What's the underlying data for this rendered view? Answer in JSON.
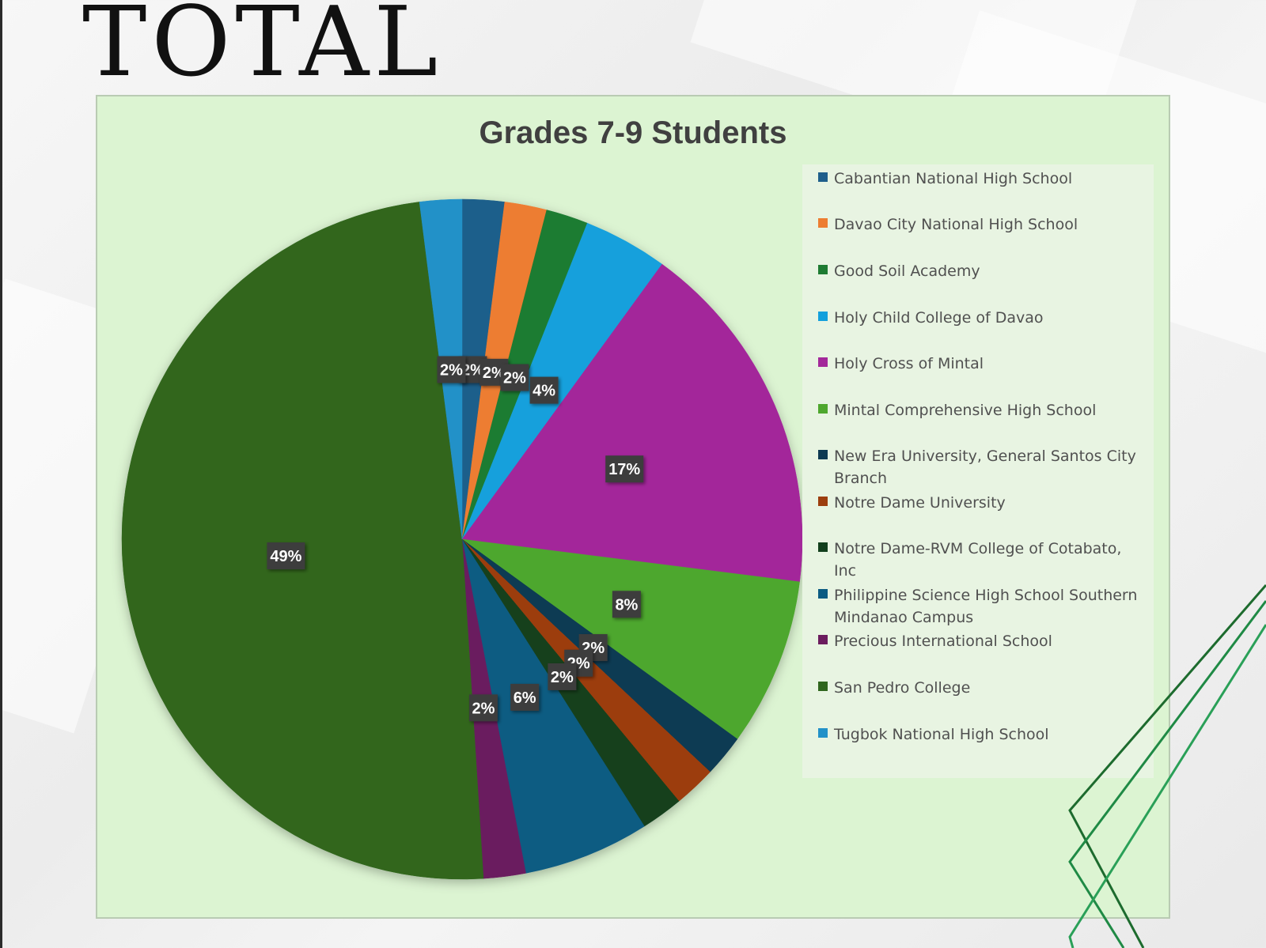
{
  "slide": {
    "title": "TOTAL"
  },
  "chart_data": {
    "type": "pie",
    "title": "Grades 7-9 Students",
    "legend_position": "right",
    "start_direction": "clockwise-from-top",
    "series": [
      {
        "name": "Cabantian National High School",
        "value": 2,
        "label": "2%",
        "color": "#1f5f8b"
      },
      {
        "name": "Davao City National High School",
        "value": 2,
        "label": "2%",
        "color": "#ed7d31"
      },
      {
        "name": "Good Soil Academy",
        "value": 2,
        "label": "2%",
        "color": "#1e7b32"
      },
      {
        "name": "Holy Child College of Davao",
        "value": 4,
        "label": "4%",
        "color": "#13a0dc"
      },
      {
        "name": "Holy Cross of Mintal",
        "value": 17,
        "label": "17%",
        "color": "#a3289a"
      },
      {
        "name": "Mintal Comprehensive High School",
        "value": 8,
        "label": "8%",
        "color": "#4ea72e"
      },
      {
        "name": "New Era University, General Santos City Branch",
        "value": 2,
        "label": "2%",
        "color": "#0e3a52"
      },
      {
        "name": "Notre Dame University",
        "value": 2,
        "label": "2%",
        "color": "#9c3e0e"
      },
      {
        "name": "Notre Dame-RVM College of Cotabato, Inc",
        "value": 2,
        "label": "2%",
        "color": "#123f1c"
      },
      {
        "name": "Philippine Science High School Southern Mindanao Campus",
        "value": 6,
        "label": "6%",
        "color": "#0b5b82"
      },
      {
        "name": "Precious International School",
        "value": 2,
        "label": "2%",
        "color": "#6b1c5e"
      },
      {
        "name": "San Pedro College",
        "value": 49,
        "label": "49%",
        "color": "#30661e"
      },
      {
        "name": "Tugbok National High School",
        "value": 2,
        "label": "2%",
        "color": "#2291c8"
      }
    ]
  }
}
